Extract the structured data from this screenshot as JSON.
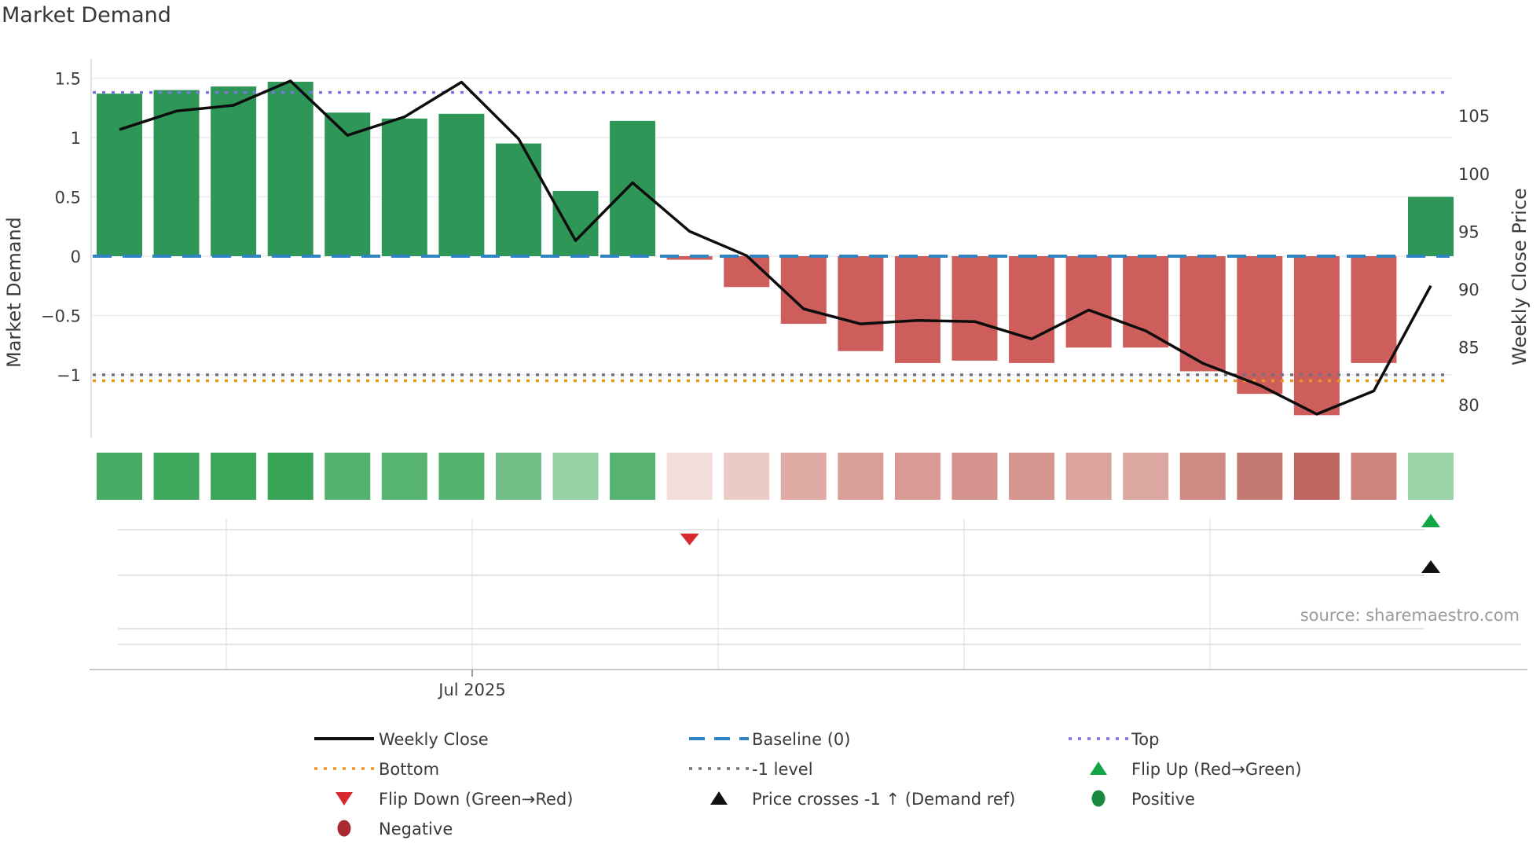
{
  "chart_data": {
    "type": "bar+line",
    "title": "Market Demand",
    "n_weeks": 24,
    "left_axis": {
      "label": "Market Demand",
      "tick_labels": [
        "1.5",
        "1",
        "0.5",
        "0",
        "−0.5",
        "−1"
      ],
      "tick_values": [
        1.5,
        1.0,
        0.5,
        0.0,
        -0.5,
        -1.0
      ]
    },
    "right_axis": {
      "label": "Weekly Close Price",
      "tick_labels": [
        "105",
        "100",
        "95",
        "90",
        "85",
        "80"
      ],
      "tick_values": [
        105,
        100,
        95,
        90,
        85,
        80
      ]
    },
    "x_axis": {
      "visible_label": "Jul 2025"
    },
    "series": [
      {
        "name": "Market Demand",
        "type": "bar",
        "values": [
          1.37,
          1.4,
          1.43,
          1.47,
          1.21,
          1.16,
          1.2,
          0.95,
          0.55,
          1.14,
          -0.03,
          -0.26,
          -0.57,
          -0.8,
          -0.9,
          -0.88,
          -0.9,
          -0.77,
          -0.77,
          -0.97,
          -1.16,
          -1.34,
          -0.9,
          0.5
        ]
      },
      {
        "name": "Weekly Close",
        "type": "line",
        "values": [
          103.8,
          105.4,
          105.9,
          108.0,
          103.3,
          104.9,
          107.9,
          103.0,
          94.2,
          99.2,
          95.0,
          92.9,
          88.3,
          87.0,
          87.3,
          87.2,
          85.7,
          88.2,
          86.4,
          83.6,
          81.7,
          79.2,
          81.2,
          90.3
        ]
      }
    ],
    "reference_lines": [
      {
        "name": "Top",
        "value": 1.38,
        "style": "dotted",
        "color": "#7b74e3"
      },
      {
        "name": "Baseline (0)",
        "value": 0.0,
        "style": "dashed",
        "color": "#2f83c0"
      },
      {
        "name": "-1 level",
        "value": -1.0,
        "style": "dotted",
        "color": "#70707e"
      },
      {
        "name": "Bottom",
        "value": -1.05,
        "style": "dotted",
        "color": "#ef9420"
      }
    ],
    "heatmap_strip": {
      "colors": [
        "#47ac63",
        "#40a85d",
        "#3ca65a",
        "#38a455",
        "#54b16e",
        "#57b370",
        "#54b16e",
        "#72be87",
        "#97d1a5",
        "#58b371",
        "#f1deda",
        "#eccbc6",
        "#e0aba5",
        "#d99e98",
        "#d79b94",
        "#d4938d",
        "#d69690",
        "#dba49e",
        "#dca7a1",
        "#cf8a84",
        "#c47a73",
        "#bd655e",
        "#cd847d",
        "#9cd3a9"
      ]
    },
    "markers": [
      {
        "name": "Flip Down (Green→Red)",
        "week": 11,
        "shape": "triangle-down",
        "color": "#d7282f",
        "row": "flip"
      },
      {
        "name": "Flip Up (Red→Green)",
        "week": 24,
        "shape": "triangle-up",
        "color": "#13a648",
        "row": "flip"
      },
      {
        "name": "Price crosses -1 ↑ (Demand ref)",
        "week": 24,
        "shape": "triangle-up",
        "color": "#111111",
        "row": "cross"
      }
    ],
    "colors": {
      "bar_positive": "#2e9758",
      "bar_negative": "#cd5e5c",
      "line": "#0d0d0d"
    },
    "source": "source: sharemaestro.com"
  },
  "legend": {
    "rows": [
      [
        {
          "type": "line",
          "color": "#111111",
          "label": "Weekly Close"
        },
        {
          "type": "dash",
          "color": "#2f83c0",
          "label": "Baseline (0)"
        },
        {
          "type": "dot",
          "color": "#7b74e3",
          "label": "Top"
        }
      ],
      [
        {
          "type": "dot",
          "color": "#ef9420",
          "label": "Bottom"
        },
        {
          "type": "dot",
          "color": "#70707e",
          "label": "-1 level"
        },
        {
          "type": "tri-up",
          "color": "#13a648",
          "label": "Flip Up (Red→Green)"
        }
      ],
      [
        {
          "type": "tri-down",
          "color": "#d7282f",
          "label": "Flip Down (Green→Red)"
        },
        {
          "type": "tri-up",
          "color": "#111111",
          "label": "Price crosses -1 ↑ (Demand ref)"
        },
        {
          "type": "circle",
          "color": "#178a3f",
          "label": "Positive"
        }
      ],
      [
        {
          "type": "circle",
          "color": "#ab2a31",
          "label": "Negative"
        }
      ]
    ]
  }
}
